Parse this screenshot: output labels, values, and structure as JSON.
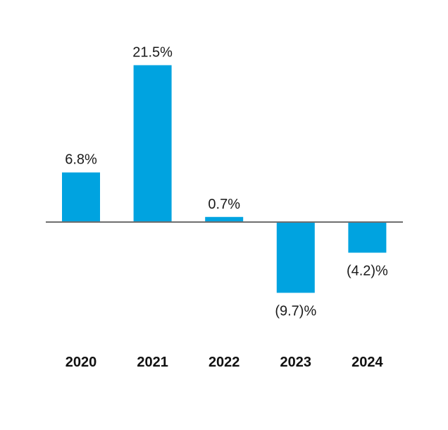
{
  "chart_data": {
    "type": "bar",
    "categories": [
      "2020",
      "2021",
      "2022",
      "2023",
      "2024"
    ],
    "values": [
      6.8,
      21.5,
      0.7,
      -9.7,
      -4.2
    ],
    "value_labels": [
      "6.8%",
      "21.5%",
      "0.7%",
      "(9.7)%",
      "(4.2)%"
    ],
    "title": "",
    "xlabel": "",
    "ylabel": "",
    "ylim": [
      -15,
      25
    ],
    "grid": false,
    "bar_color": "#00a3e0",
    "baseline_color": "#6e6e6e"
  }
}
